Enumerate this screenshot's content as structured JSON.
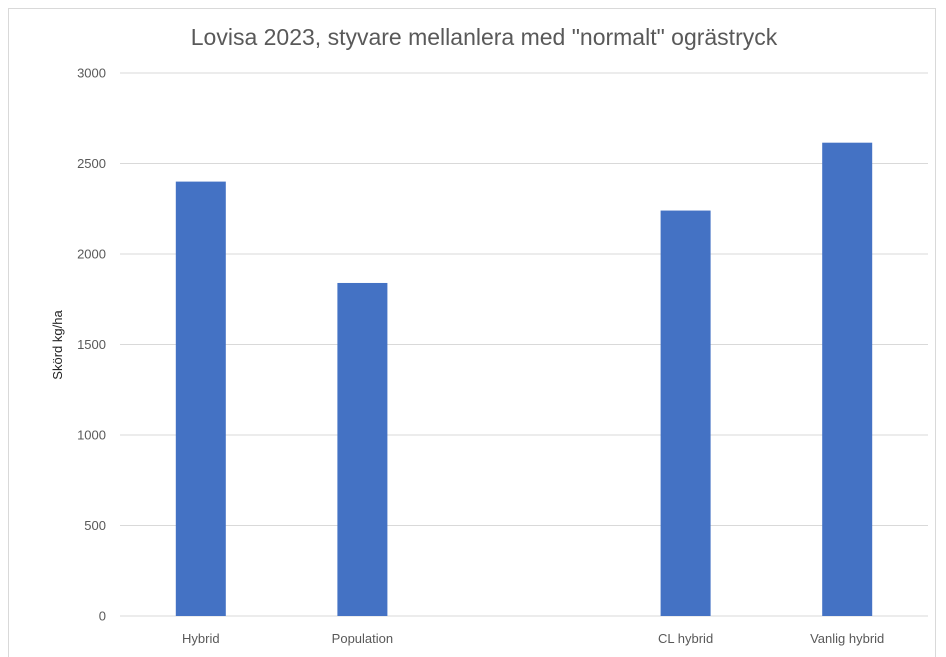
{
  "chart_data": {
    "type": "bar",
    "title": "Lovisa 2023, styvare mellanlera med \"normalt\" ogrästryck",
    "xlabel": "",
    "ylabel": "Skörd kg/ha",
    "ylim": [
      0,
      3000
    ],
    "yticks": [
      0,
      500,
      1000,
      1500,
      2000,
      2500,
      3000
    ],
    "yticks_labels": [
      "0",
      "500",
      "1000",
      "1500",
      "2000",
      "2500",
      "3000"
    ],
    "categories": [
      "Hybrid",
      "Population",
      "",
      "CL hybrid",
      "Vanlig hybrid"
    ],
    "values": [
      2400,
      1840,
      null,
      2240,
      2615
    ],
    "bar_color": "#4472C4",
    "grid": true,
    "legend": "none"
  }
}
